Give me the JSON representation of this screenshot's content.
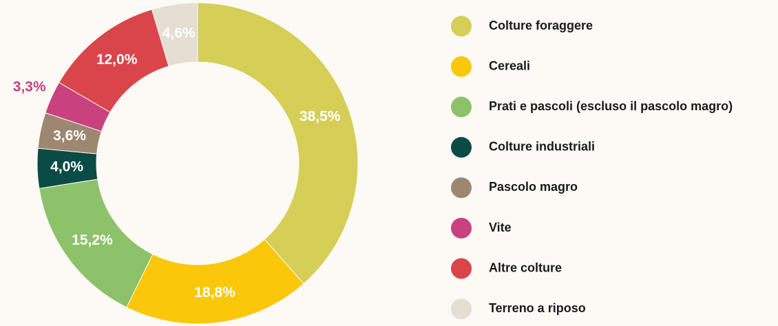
{
  "chart_data": {
    "type": "donut",
    "categories": [
      "Colture foraggere",
      "Cereali",
      "Prati e pascoli (escluso il pascolo magro)",
      "Colture industriali",
      "Pascolo magro",
      "Vite",
      "Altre colture",
      "Terreno a riposo"
    ],
    "values": [
      38.5,
      18.8,
      15.2,
      4.0,
      3.6,
      3.3,
      12.0,
      4.6
    ],
    "value_labels": [
      "38,5%",
      "18,8%",
      "15,2%",
      "4,0%",
      "3,6%",
      "3,3%",
      "12,0%",
      "4,6%"
    ],
    "colors": [
      "#d5cf57",
      "#fbc70b",
      "#8dc26b",
      "#0b4b45",
      "#9d8771",
      "#c9417f",
      "#d9454b",
      "#e4ded3"
    ]
  }
}
